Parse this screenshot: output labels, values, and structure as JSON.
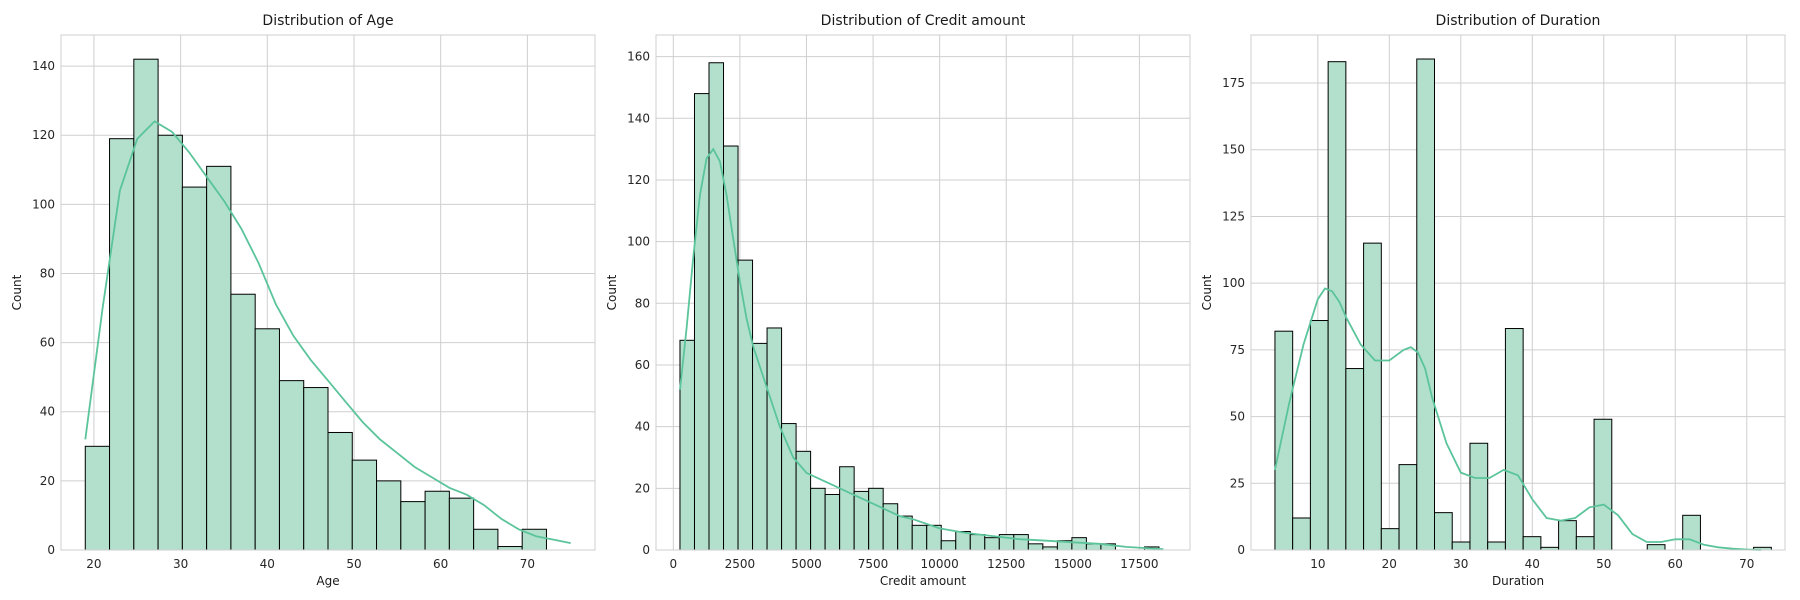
{
  "colors": {
    "bar_fill": "#b2e0cc",
    "bar_edge": "#000000",
    "kde": "#5bc49b",
    "grid": "#cfcfcf"
  },
  "chart_data": [
    {
      "type": "bar",
      "title": "Distribution of Age",
      "xlabel": "Age",
      "ylabel": "Count",
      "grid": true,
      "xlim": [
        16.2,
        77.8
      ],
      "ylim": [
        0,
        149
      ],
      "xticks": [
        20,
        30,
        40,
        50,
        60,
        70
      ],
      "yticks": [
        0,
        20,
        40,
        60,
        80,
        100,
        120,
        140
      ],
      "bin_start": 19,
      "bin_width": 2.8,
      "counts": [
        30,
        119,
        142,
        120,
        105,
        111,
        74,
        64,
        49,
        47,
        34,
        26,
        20,
        14,
        17,
        15,
        6,
        1,
        6
      ],
      "kde": {
        "x": [
          19,
          21,
          23,
          25,
          27,
          29,
          31,
          33,
          35,
          37,
          39,
          41,
          43,
          45,
          47,
          49,
          51,
          53,
          55,
          57,
          59,
          61,
          63,
          65,
          67,
          69,
          71,
          73,
          75
        ],
        "y": [
          32,
          70,
          104,
          119,
          124,
          121,
          115,
          108,
          101,
          93,
          83,
          71,
          62,
          55,
          49,
          43,
          37,
          32,
          28,
          24,
          21,
          18,
          16,
          13,
          9,
          6,
          4,
          3,
          2
        ]
      }
    },
    {
      "type": "bar",
      "title": "Distribution of Credit amount",
      "xlabel": "Credit amount",
      "ylabel": "Count",
      "grid": true,
      "xlim": [
        -650,
        19400
      ],
      "ylim": [
        0,
        167
      ],
      "xticks": [
        0,
        2500,
        5000,
        7500,
        10000,
        12500,
        15000,
        17500
      ],
      "xtick_labels": [
        "0",
        "2500",
        "5000",
        "7500",
        "10000",
        "12500",
        "15000",
        "17500"
      ],
      "yticks": [
        0,
        20,
        40,
        60,
        80,
        100,
        120,
        140,
        160
      ],
      "bin_start": 250,
      "bin_width": 545,
      "counts": [
        68,
        148,
        158,
        131,
        94,
        67,
        72,
        41,
        32,
        20,
        18,
        27,
        19,
        20,
        15,
        11,
        8,
        8,
        3,
        6,
        5,
        4,
        5,
        5,
        2,
        1,
        3,
        4,
        2,
        2,
        0,
        0,
        1
      ],
      "kde": {
        "x": [
          250,
          500,
          750,
          1000,
          1250,
          1500,
          1750,
          2000,
          2250,
          2500,
          2750,
          3000,
          3500,
          4000,
          4500,
          5000,
          5500,
          6000,
          6500,
          7000,
          7500,
          8000,
          8500,
          9000,
          10000,
          11000,
          12000,
          13000,
          14000,
          15000,
          16000,
          17000,
          18000,
          18400
        ],
        "y": [
          52,
          72,
          95,
          115,
          127,
          130,
          126,
          115,
          101,
          87,
          75,
          66,
          53,
          40,
          30,
          25,
          23,
          21,
          19,
          17,
          15,
          13,
          11,
          10,
          7,
          5.5,
          4.5,
          3.5,
          3,
          2.5,
          2,
          1,
          0.5,
          0.3
        ]
      }
    },
    {
      "type": "bar",
      "title": "Distribution of Duration",
      "xlabel": "Duration",
      "ylabel": "Count",
      "grid": true,
      "xlim": [
        0.65,
        75.35
      ],
      "ylim": [
        0,
        193
      ],
      "xticks": [
        10,
        20,
        30,
        40,
        50,
        60,
        70
      ],
      "yticks": [
        0,
        25,
        50,
        75,
        100,
        125,
        150,
        175
      ],
      "bin_start": 4,
      "bin_width": 2.48,
      "counts": [
        82,
        12,
        86,
        183,
        68,
        115,
        8,
        32,
        184,
        14,
        3,
        40,
        3,
        83,
        5,
        1,
        11,
        5,
        49,
        0,
        0,
        2,
        0,
        13,
        0,
        0,
        0,
        1
      ],
      "kde": {
        "x": [
          4,
          6,
          8,
          10,
          11,
          12,
          13,
          14,
          16,
          18,
          20,
          22,
          23,
          24,
          25,
          26,
          28,
          30,
          32,
          34,
          36,
          38,
          40,
          42,
          44,
          46,
          48,
          50,
          52,
          54,
          56,
          58,
          60,
          62,
          64,
          66,
          68,
          70,
          72
        ],
        "y": [
          30,
          55,
          77,
          94,
          98,
          97,
          93,
          87,
          77,
          71,
          71,
          75,
          76,
          74,
          68,
          57,
          40,
          29,
          27,
          27,
          30,
          28,
          19,
          12,
          11,
          12,
          16,
          17,
          13,
          6,
          3,
          3,
          4,
          4,
          2,
          1,
          0.5,
          0.2,
          0
        ]
      }
    }
  ]
}
